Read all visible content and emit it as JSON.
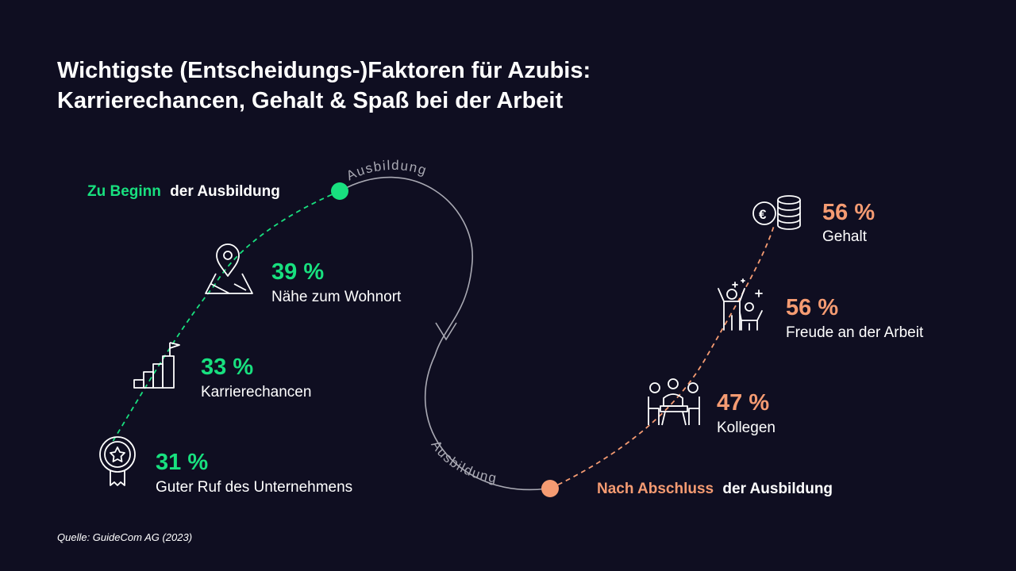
{
  "title": {
    "line1": "Wichtigste (Entscheidungs-)Faktoren für Azubis:",
    "line2": "Karrierechancen, Gehalt & Spaß bei der Arbeit"
  },
  "colors": {
    "background": "#0f0e21",
    "start_green": "#18e07f",
    "end_orange": "#f59b72",
    "path_grey": "#a9a9b3",
    "text": "#ffffff"
  },
  "start": {
    "highlight": "Zu Beginn",
    "rest": "der Ausbildung"
  },
  "end": {
    "highlight": "Nach Abschluss",
    "rest": "der Ausbildung"
  },
  "path_labels": {
    "upper": "Ausbildung",
    "lower": "Ausbildung"
  },
  "start_factors": [
    {
      "value": "39 %",
      "label": "Nähe zum Wohnort",
      "icon": "map-pin-icon"
    },
    {
      "value": "33 %",
      "label": "Karrierechancen",
      "icon": "career-stairs-icon"
    },
    {
      "value": "31 %",
      "label": "Guter Ruf des Unternehmens",
      "icon": "award-badge-icon"
    }
  ],
  "end_factors": [
    {
      "value": "56 %",
      "label": "Gehalt",
      "icon": "coins-euro-icon"
    },
    {
      "value": "56 %",
      "label": "Freude an der Arbeit",
      "icon": "celebrating-people-icon"
    },
    {
      "value": "47 %",
      "label": "Kollegen",
      "icon": "colleagues-meeting-icon"
    }
  ],
  "source": "Quelle:  GuideCom AG (2023)"
}
